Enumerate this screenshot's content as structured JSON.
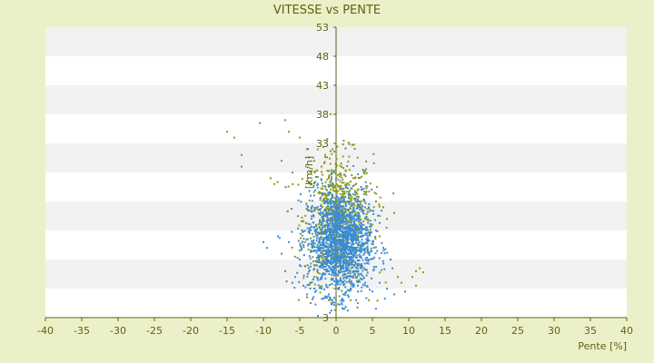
{
  "chart_data": {
    "type": "scatter",
    "title": "VITESSE vs PENTE",
    "xlabel": "Pente [%]",
    "ylabel": "[km/h]",
    "xlim": [
      -40,
      40
    ],
    "ylim": [
      3,
      53
    ],
    "x_ticks": [
      "-40",
      "-35",
      "-30",
      "-25",
      "-20",
      "-15",
      "-10",
      "-5",
      "0",
      "5",
      "10",
      "15",
      "20",
      "25",
      "30",
      "35",
      "40"
    ],
    "y_ticks": [
      "3",
      "8",
      "13",
      "18",
      "23",
      "28",
      "33",
      "38",
      "43",
      "48",
      "53"
    ],
    "y_tick_labels_shown": [
      "3",
      "13",
      "33",
      "38",
      "43",
      "48",
      "53"
    ],
    "grid": "horizontal bands",
    "colors": {
      "background": "#ecf0c8",
      "plot_band_white": "#ffffff",
      "plot_band_grey": "#f2f2f2",
      "axis": "#5b6313",
      "text": "#5b6313",
      "series_blue": "#3a8bd6",
      "series_green": "#8a9a1e"
    },
    "series": [
      {
        "color": "#3a8bd6",
        "cluster": {
          "x_mean": 0.5,
          "x_sd": 2.2,
          "y_mean": 16,
          "y_sd": 4.5
        },
        "points": [
          [
            -10,
            16
          ],
          [
            -9.5,
            15
          ],
          [
            -7,
            11
          ],
          [
            -6,
            9
          ],
          [
            -5,
            12
          ],
          [
            -5,
            13
          ],
          [
            -4.5,
            8.5
          ],
          [
            -4,
            7
          ],
          [
            -3.5,
            9
          ],
          [
            -3,
            8
          ],
          [
            -2,
            8
          ],
          [
            -1,
            7
          ],
          [
            1,
            7
          ],
          [
            2,
            8
          ],
          [
            3,
            8.5
          ],
          [
            4,
            9
          ],
          [
            5,
            7.5
          ],
          [
            6,
            9
          ],
          [
            7,
            8
          ],
          [
            8,
            7
          ],
          [
            9.5,
            7.5
          ],
          [
            7.5,
            13
          ],
          [
            6.5,
            15
          ],
          [
            5.5,
            18
          ],
          [
            -7.5,
            14
          ],
          [
            -6.5,
            16
          ],
          [
            -8,
            17
          ],
          [
            4.5,
            22
          ],
          [
            3.5,
            25
          ],
          [
            -3.5,
            24
          ],
          [
            -2.5,
            26
          ],
          [
            2.5,
            12
          ],
          [
            1.5,
            10
          ]
        ]
      },
      {
        "color": "#8a9a1e",
        "cluster": {
          "x_mean": 0.3,
          "x_sd": 2.4,
          "y_mean": 20,
          "y_sd": 5.5
        },
        "points": [
          [
            -15,
            35
          ],
          [
            -14,
            34
          ],
          [
            -13,
            31
          ],
          [
            -13,
            29
          ],
          [
            -10.5,
            36.5
          ],
          [
            -7,
            37
          ],
          [
            -6.5,
            35
          ],
          [
            -5,
            34
          ],
          [
            -9,
            27
          ],
          [
            -8.5,
            26
          ],
          [
            -7.5,
            30
          ],
          [
            -6,
            28
          ],
          [
            -4,
            32
          ],
          [
            -3,
            30
          ],
          [
            -2,
            29
          ],
          [
            -1.5,
            31
          ],
          [
            -0.5,
            32
          ],
          [
            -1,
            27
          ],
          [
            2,
            24
          ],
          [
            3,
            22
          ],
          [
            4,
            20
          ],
          [
            5,
            19
          ],
          [
            6,
            17
          ],
          [
            7,
            20
          ],
          [
            8,
            21
          ],
          [
            5.5,
            23
          ],
          [
            6.5,
            22
          ],
          [
            11,
            11
          ],
          [
            11.5,
            11.5
          ],
          [
            12,
            10.8
          ],
          [
            10.5,
            10
          ],
          [
            8.5,
            10
          ],
          [
            9,
            9
          ],
          [
            11,
            8.5
          ],
          [
            -4,
            6.5
          ],
          [
            -3.5,
            5.5
          ],
          [
            2,
            6
          ],
          [
            3,
            5.5
          ],
          [
            4.5,
            6
          ],
          [
            0,
            5
          ],
          [
            -1,
            6
          ],
          [
            1,
            4.5
          ]
        ]
      }
    ]
  }
}
